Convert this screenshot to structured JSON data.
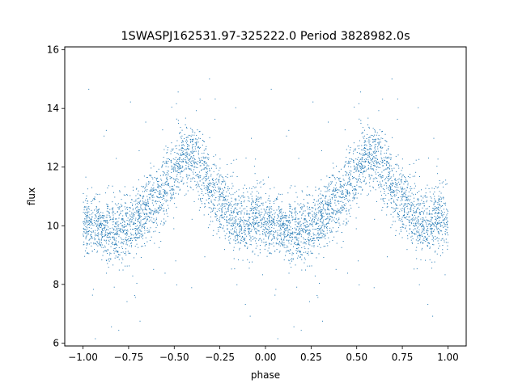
{
  "chart_data": {
    "type": "scatter",
    "title": "1SWASPJ162531.97-325222.0 Period 3828982.0s",
    "xlabel": "phase",
    "ylabel": "flux",
    "xlim": [
      -1.1,
      1.1
    ],
    "ylim": [
      5.9,
      16.1
    ],
    "xticks": [
      -1.0,
      -0.75,
      -0.5,
      -0.25,
      0.0,
      0.25,
      0.5,
      0.75,
      1.0
    ],
    "xtick_labels": [
      "−1.00",
      "−0.75",
      "−0.50",
      "−0.25",
      "0.00",
      "0.25",
      "0.50",
      "0.75",
      "1.00"
    ],
    "yticks": [
      6,
      8,
      10,
      12,
      14,
      16
    ],
    "ytick_labels": [
      "6",
      "8",
      "10",
      "12",
      "14",
      "16"
    ],
    "grid": false,
    "marker_color": "#1f77b4",
    "phase_profile": {
      "phase": [
        0.0,
        0.05,
        0.1,
        0.15,
        0.2,
        0.25,
        0.3,
        0.35,
        0.4,
        0.45,
        0.5,
        0.55,
        0.6,
        0.65,
        0.7,
        0.75,
        0.8,
        0.85,
        0.9,
        0.95,
        1.0
      ],
      "flux": [
        10.2,
        10.0,
        9.9,
        9.85,
        9.8,
        9.9,
        10.2,
        10.6,
        10.9,
        11.3,
        11.9,
        12.3,
        12.4,
        11.9,
        11.2,
        10.8,
        10.4,
        10.1,
        10.1,
        10.3,
        10.2
      ]
    },
    "scatter_width": 0.55
  }
}
